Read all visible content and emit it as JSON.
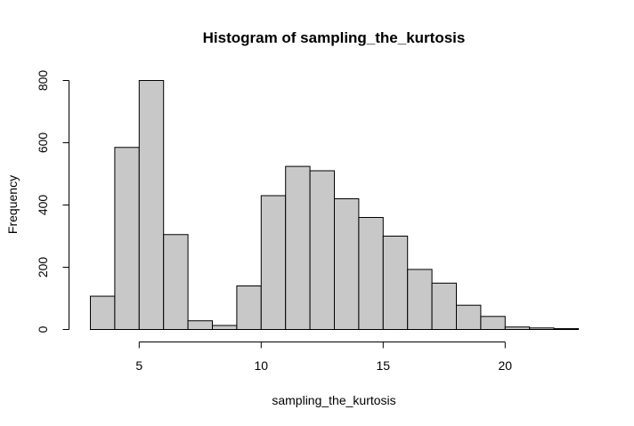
{
  "chart_data": {
    "type": "bar",
    "title": "Histogram of sampling_the_kurtosis",
    "xlabel": "sampling_the_kurtosis",
    "ylabel": "Frequency",
    "bin_edges": [
      3,
      4,
      5,
      6,
      7,
      8,
      9,
      10,
      11,
      12,
      13,
      14,
      15,
      16,
      17,
      18,
      19,
      20,
      21,
      22,
      23
    ],
    "values": [
      107,
      585,
      800,
      305,
      28,
      13,
      140,
      430,
      524,
      510,
      420,
      360,
      300,
      193,
      149,
      78,
      42,
      8,
      5,
      3
    ],
    "xlim": [
      3,
      23
    ],
    "ylim": [
      0,
      800
    ],
    "x_ticks": [
      5,
      10,
      15,
      20
    ],
    "y_ticks": [
      0,
      200,
      400,
      600,
      800
    ],
    "bar_color": "#c8c8c8",
    "grid": false
  }
}
